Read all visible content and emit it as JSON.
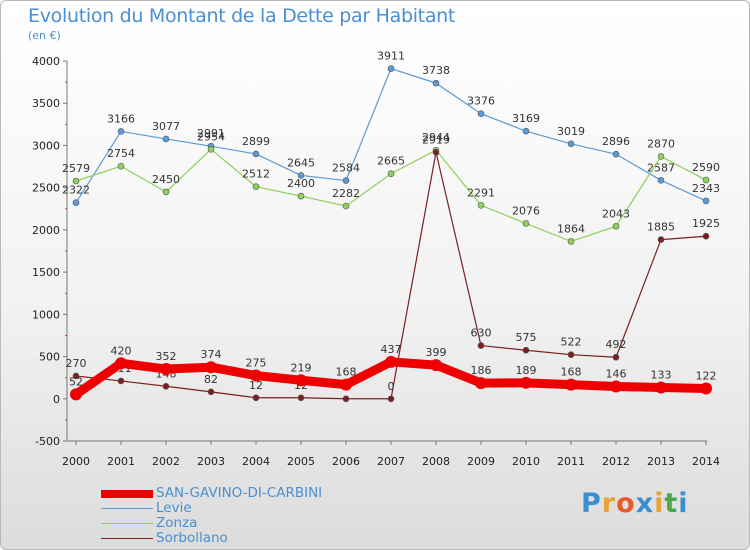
{
  "title": "Evolution du Montant de la Dette par Habitant",
  "unit": "(en €)",
  "brand": {
    "name": "Proxiti",
    "letters": [
      "P",
      "r",
      "o",
      "x",
      "i",
      "t",
      "i"
    ],
    "colors": [
      "#3a8fd0",
      "#e8a23a",
      "#e85a2a",
      "#3a8fd0",
      "#e8a23a",
      "#4aa84a",
      "#3a8fd0"
    ]
  },
  "chart_data": {
    "type": "line",
    "x": [
      "2000",
      "2001",
      "2002",
      "2003",
      "2004",
      "2005",
      "2006",
      "2007",
      "2008",
      "2009",
      "2010",
      "2011",
      "2012",
      "2013",
      "2014"
    ],
    "yticks": [
      "-500",
      "0",
      "500",
      "1000",
      "1500",
      "2000",
      "2500",
      "3000",
      "3500",
      "4000"
    ],
    "ylim": [
      -500,
      4000
    ],
    "grid": false,
    "legend_position": "bottom",
    "series": [
      {
        "name": "Levie",
        "color": "#5b9bd5",
        "values": [
          2322,
          3166,
          3077,
          2991,
          2899,
          2645,
          2584,
          3911,
          3738,
          3376,
          3169,
          3019,
          2896,
          2587,
          2343
        ],
        "labels": [
          "2322",
          "3166",
          "3077",
          "2991",
          "2899",
          "2645",
          "2584",
          "3911",
          "3738",
          "3376",
          "3169",
          "3019",
          "2896",
          "2587",
          "2343"
        ]
      },
      {
        "name": "Zonza",
        "color": "#8fd05a",
        "values": [
          2579,
          2754,
          2450,
          2954,
          2512,
          2400,
          2282,
          2665,
          2944,
          2291,
          2076,
          1864,
          2043,
          2870,
          2590
        ],
        "labels": [
          "2579",
          "2754",
          "2450",
          "2954",
          "2512",
          "2400",
          "2282",
          "2665",
          "2944",
          "2291",
          "2076",
          "1864",
          "2043",
          "2870",
          "2590"
        ]
      },
      {
        "name": "Sorbollano",
        "color": "#7a2020",
        "values": [
          270,
          211,
          148,
          82,
          12,
          12,
          0,
          0,
          2919,
          630,
          575,
          522,
          492,
          1885,
          1925
        ],
        "labels": [
          "270",
          "211",
          "148",
          "82",
          "12",
          "12",
          "0",
          "0",
          "2919",
          "630",
          "575",
          "522",
          "492",
          "1885",
          "1925"
        ]
      },
      {
        "name": "SAN-GAVINO-DI-CARBINI",
        "color": "#ee0000",
        "values": [
          52,
          420,
          352,
          374,
          275,
          219,
          168,
          437,
          399,
          186,
          189,
          168,
          146,
          133,
          122
        ],
        "labels": [
          "52",
          "420",
          "352",
          "374",
          "275",
          "219",
          "168",
          "437",
          "399",
          "186",
          "189",
          "168",
          "146",
          "133",
          "122"
        ]
      }
    ]
  }
}
